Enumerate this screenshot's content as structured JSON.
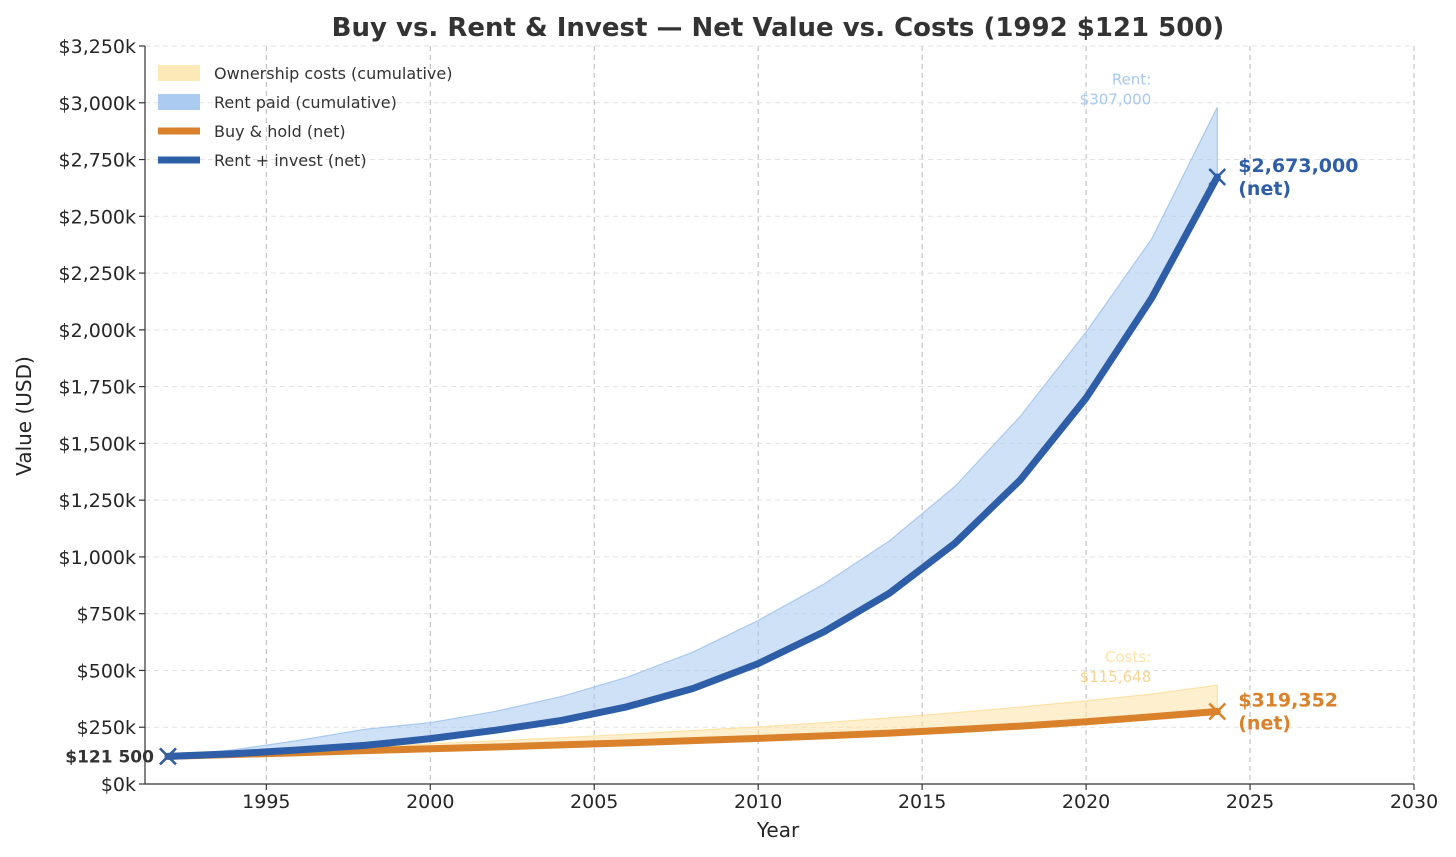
{
  "chart_data": {
    "type": "line",
    "title": "Buy vs. Rent & Invest — Net Value vs. Costs (1992 $121 500)",
    "xlabel": "Year",
    "ylabel": "Value (USD)",
    "xlim": [
      1991.3,
      2030
    ],
    "ylim": [
      0,
      3250000
    ],
    "x_ticks": [
      1995,
      2000,
      2005,
      2010,
      2015,
      2020,
      2025,
      2030
    ],
    "x_tick_labels": [
      "1995",
      "2000",
      "2005",
      "2010",
      "2015",
      "2020",
      "2025",
      "2030"
    ],
    "y_ticks": [
      0,
      250000,
      500000,
      750000,
      1000000,
      1250000,
      1500000,
      1750000,
      2000000,
      2250000,
      2500000,
      2750000,
      3000000,
      3250000
    ],
    "y_tick_labels": [
      "$0k",
      "$250k",
      "$500k",
      "$750k",
      "$1,000k",
      "$1,250k",
      "$1,500k",
      "$1,750k",
      "$2,000k",
      "$2,250k",
      "$2,500k",
      "$2,750k",
      "$3,000k",
      "$3,250k"
    ],
    "grid": true,
    "legend_position": "top-left",
    "x": [
      1992,
      1994,
      1996,
      1998,
      2000,
      2002,
      2004,
      2006,
      2008,
      2010,
      2012,
      2014,
      2016,
      2018,
      2020,
      2022,
      2024
    ],
    "series": [
      {
        "name": "Ownership costs (cumulative)",
        "kind": "band",
        "base": "Buy & hold (net)",
        "color": "#fde2a6",
        "values": [
          121500,
          136000,
          150000,
          163000,
          177000,
          190000,
          204000,
          219000,
          235000,
          252000,
          270000,
          291000,
          314000,
          339000,
          366000,
          396000,
          435000
        ]
      },
      {
        "name": "Rent paid (cumulative)",
        "kind": "band",
        "base": "Rent + invest (net)",
        "color": "#a8c8f0",
        "values": [
          121500,
          150000,
          192000,
          241000,
          270000,
          320000,
          385000,
          470000,
          580000,
          720000,
          880000,
          1070000,
          1310000,
          1620000,
          1990000,
          2400000,
          2980000
        ]
      },
      {
        "name": "Buy & hold (net)",
        "kind": "line",
        "color": "#d9822b",
        "values": [
          121500,
          130000,
          138000,
          147000,
          155000,
          163000,
          172000,
          181000,
          191000,
          201000,
          212000,
          224000,
          239000,
          255000,
          274000,
          296000,
          319352
        ]
      },
      {
        "name": "Rent + invest (net)",
        "kind": "line",
        "color": "#2e5ea8",
        "values": [
          121500,
          133000,
          150000,
          170000,
          200000,
          237000,
          280000,
          340000,
          420000,
          530000,
          670000,
          840000,
          1060000,
          1340000,
          1700000,
          2140000,
          2673000
        ]
      }
    ],
    "annotations": {
      "start_label": "$121 500",
      "buy_end_label_line1": "$319,352",
      "buy_end_label_line2": "(net)",
      "rent_end_label_line1": "$2,673,000",
      "rent_end_label_line2": "(net)",
      "rent_note_line1": "Rent:",
      "rent_note_line2": "$307,000",
      "costs_note_line1": "Costs:",
      "costs_note_line2": "$115,648"
    }
  }
}
